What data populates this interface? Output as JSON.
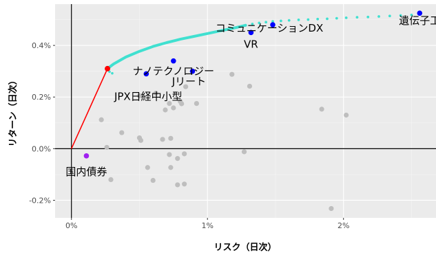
{
  "chart_data": {
    "type": "scatter",
    "title": "",
    "xlabel": "リスク（日次）",
    "ylabel": "リターン（日次）",
    "xlim": [
      -0.0012,
      0.0268
    ],
    "ylim": [
      -0.00268,
      0.0056
    ],
    "x_ticks": [
      {
        "value": 0.0,
        "label": "0%"
      },
      {
        "value": 0.01,
        "label": "1%"
      },
      {
        "value": 0.02,
        "label": "2%"
      }
    ],
    "y_ticks": [
      {
        "value": -0.002,
        "label": "-0.2%"
      },
      {
        "value": 0.0,
        "label": "0.0%"
      },
      {
        "value": 0.002,
        "label": "0.2%"
      },
      {
        "value": 0.004,
        "label": "0.4%"
      }
    ],
    "grid": true,
    "background": "#ebebeb",
    "colors": {
      "gray_points": "#bebebe",
      "highlight_points": "#0000ff",
      "tangency_point": "#ff0000",
      "bond_point": "#a020f0",
      "frontier": "#40e0d0",
      "capital_line": "#ff0000",
      "zero_axes": "#000000"
    },
    "capital_market_line": {
      "x": [
        0.0,
        0.00265
      ],
      "y": [
        0.0,
        0.0031
      ]
    },
    "efficient_frontier_solid": {
      "x": [
        0.00265,
        0.0031,
        0.004,
        0.005,
        0.006,
        0.007,
        0.008,
        0.009,
        0.01,
        0.011,
        0.012,
        0.0128
      ],
      "y": [
        0.0031,
        0.00328,
        0.00355,
        0.00377,
        0.00396,
        0.00411,
        0.00424,
        0.00435,
        0.00446,
        0.00457,
        0.00468,
        0.00478
      ]
    },
    "efficient_frontier_dotted": {
      "x": [
        0.0128,
        0.0133,
        0.0138,
        0.0143,
        0.0148,
        0.0154,
        0.016,
        0.0167,
        0.0174,
        0.0181,
        0.0188,
        0.0195,
        0.0202,
        0.021,
        0.0218,
        0.0226,
        0.0234,
        0.0242,
        0.025,
        0.0256
      ],
      "y": [
        0.00478,
        0.00483,
        0.00487,
        0.0049,
        0.00493,
        0.00495,
        0.00497,
        0.00499,
        0.005,
        0.00502,
        0.00503,
        0.00505,
        0.00507,
        0.00509,
        0.0051,
        0.00512,
        0.00514,
        0.00516,
        0.00518,
        0.0052
      ]
    },
    "frontier_low_branch": {
      "x": [
        0.00265,
        0.0028,
        0.003
      ],
      "y": [
        0.0031,
        0.00298,
        0.00292
      ]
    },
    "other_assets": {
      "x": [
        0.0022,
        0.0026,
        0.0029,
        0.0037,
        0.005,
        0.005,
        0.0051,
        0.0056,
        0.006,
        0.0062,
        0.0067,
        0.0069,
        0.0072,
        0.0072,
        0.0073,
        0.0073,
        0.0075,
        0.0078,
        0.0078,
        0.008,
        0.0081,
        0.0083,
        0.0083,
        0.0084,
        0.0092,
        0.0118,
        0.0127,
        0.0131,
        0.0184,
        0.0202,
        0.0191
      ],
      "y": [
        0.00112,
        5e-05,
        -0.0012,
        0.00062,
        0.00205,
        0.00042,
        0.00032,
        -0.00073,
        -0.00123,
        0.00215,
        0.00036,
        0.0015,
        0.00175,
        -0.00023,
        0.0004,
        -0.00073,
        0.00158,
        -0.00038,
        -0.0014,
        0.00183,
        0.00174,
        -0.00137,
        -0.0002,
        0.0024,
        0.00175,
        0.00288,
        -0.00012,
        0.00242,
        0.00153,
        0.0013,
        -0.00232
      ]
    },
    "labeled_assets": [
      {
        "name": "遺伝子工",
        "x": 0.0256,
        "y": 0.00525,
        "color": "blue"
      },
      {
        "name": "コミュニケーションDX",
        "x": 0.0148,
        "y": 0.0048,
        "color": "blue"
      },
      {
        "name": "VR",
        "x": 0.0132,
        "y": 0.0045,
        "color": "blue"
      },
      {
        "name": "ナノテクノロジー",
        "x": 0.0075,
        "y": 0.0034,
        "color": "blue"
      },
      {
        "name": "JPX日経中小型",
        "x": 0.0055,
        "y": 0.0029,
        "color": "blue"
      },
      {
        "name": "Jリート",
        "x": 0.0089,
        "y": 0.003,
        "color": "blue"
      },
      {
        "name": "国内債券",
        "x": 0.0011,
        "y": -0.00028,
        "color": "purple"
      }
    ],
    "tangency_point": {
      "x": 0.00265,
      "y": 0.0031
    }
  }
}
